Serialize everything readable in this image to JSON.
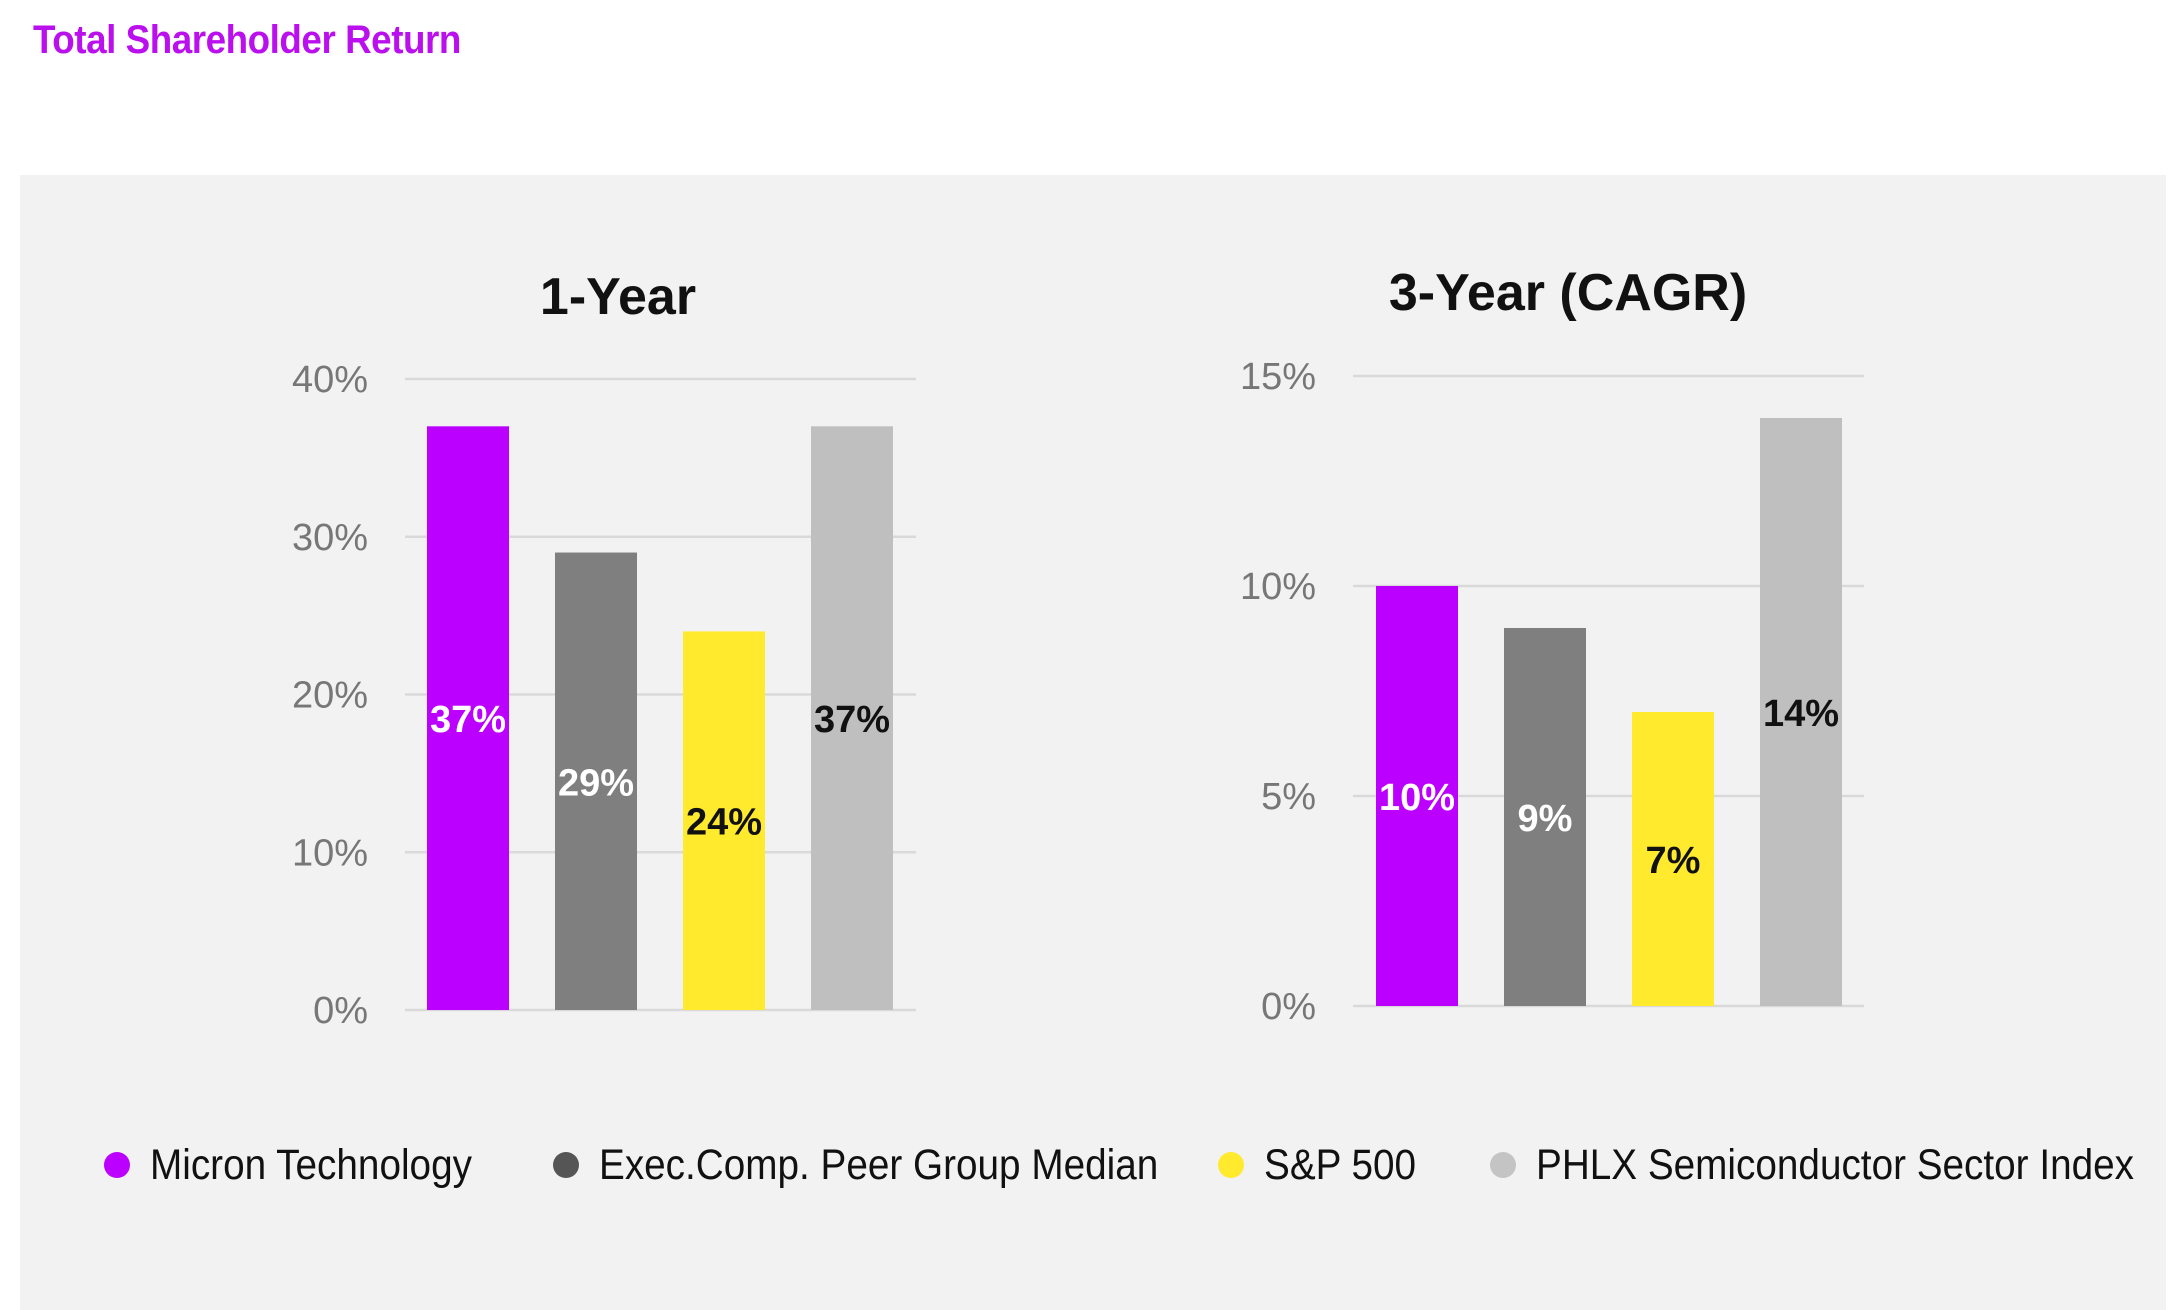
{
  "page": {
    "title": "Total Shareholder Return"
  },
  "colors": {
    "title": "#bb10ee",
    "panel_bg": "#f2f2f2",
    "grid": "#d9d9d9",
    "tick_label": "#777777"
  },
  "legend": [
    {
      "label": "Micron Technology",
      "color": "#bb00ff"
    },
    {
      "label": "Exec.Comp. Peer Group Median",
      "color": "#555555"
    },
    {
      "label": "S&P 500",
      "color": "#ffea2e"
    },
    {
      "label": "PHLX Semiconductor Sector Index",
      "color": "#c4c4c4"
    }
  ],
  "chart_data": [
    {
      "type": "bar",
      "title": "1-Year",
      "categories": [
        "Micron Technology",
        "Exec.Comp. Peer Group Median",
        "S&P 500",
        "PHLX Semiconductor Sector Index"
      ],
      "values": [
        37,
        29,
        24,
        37
      ],
      "value_labels": [
        "37%",
        "29%",
        "24%",
        "37%"
      ],
      "bar_colors": [
        "#bb00ff",
        "#7f7f7f",
        "#ffea2e",
        "#bfbfbf"
      ],
      "label_colors": [
        "#ffffff",
        "#ffffff",
        "#111111",
        "#111111"
      ],
      "yticks": [
        0,
        10,
        20,
        30,
        40
      ],
      "ytick_labels": [
        "0%",
        "10%",
        "20%",
        "30%",
        "40%"
      ],
      "ylim": [
        0,
        40
      ],
      "xlabel": "",
      "ylabel": "",
      "grid": true,
      "legend": "bottom"
    },
    {
      "type": "bar",
      "title": "3-Year (CAGR)",
      "categories": [
        "Micron Technology",
        "Exec.Comp. Peer Group Median",
        "S&P 500",
        "PHLX Semiconductor Sector Index"
      ],
      "values": [
        10,
        9,
        7,
        14
      ],
      "value_labels": [
        "10%",
        "9%",
        "7%",
        "14%"
      ],
      "bar_colors": [
        "#bb00ff",
        "#7f7f7f",
        "#ffea2e",
        "#bfbfbf"
      ],
      "label_colors": [
        "#ffffff",
        "#ffffff",
        "#111111",
        "#111111"
      ],
      "yticks": [
        0,
        5,
        10,
        15
      ],
      "ytick_labels": [
        "0%",
        "5%",
        "10%",
        "15%"
      ],
      "ylim": [
        0,
        15
      ],
      "xlabel": "",
      "ylabel": "",
      "grid": true,
      "legend": "bottom"
    }
  ]
}
